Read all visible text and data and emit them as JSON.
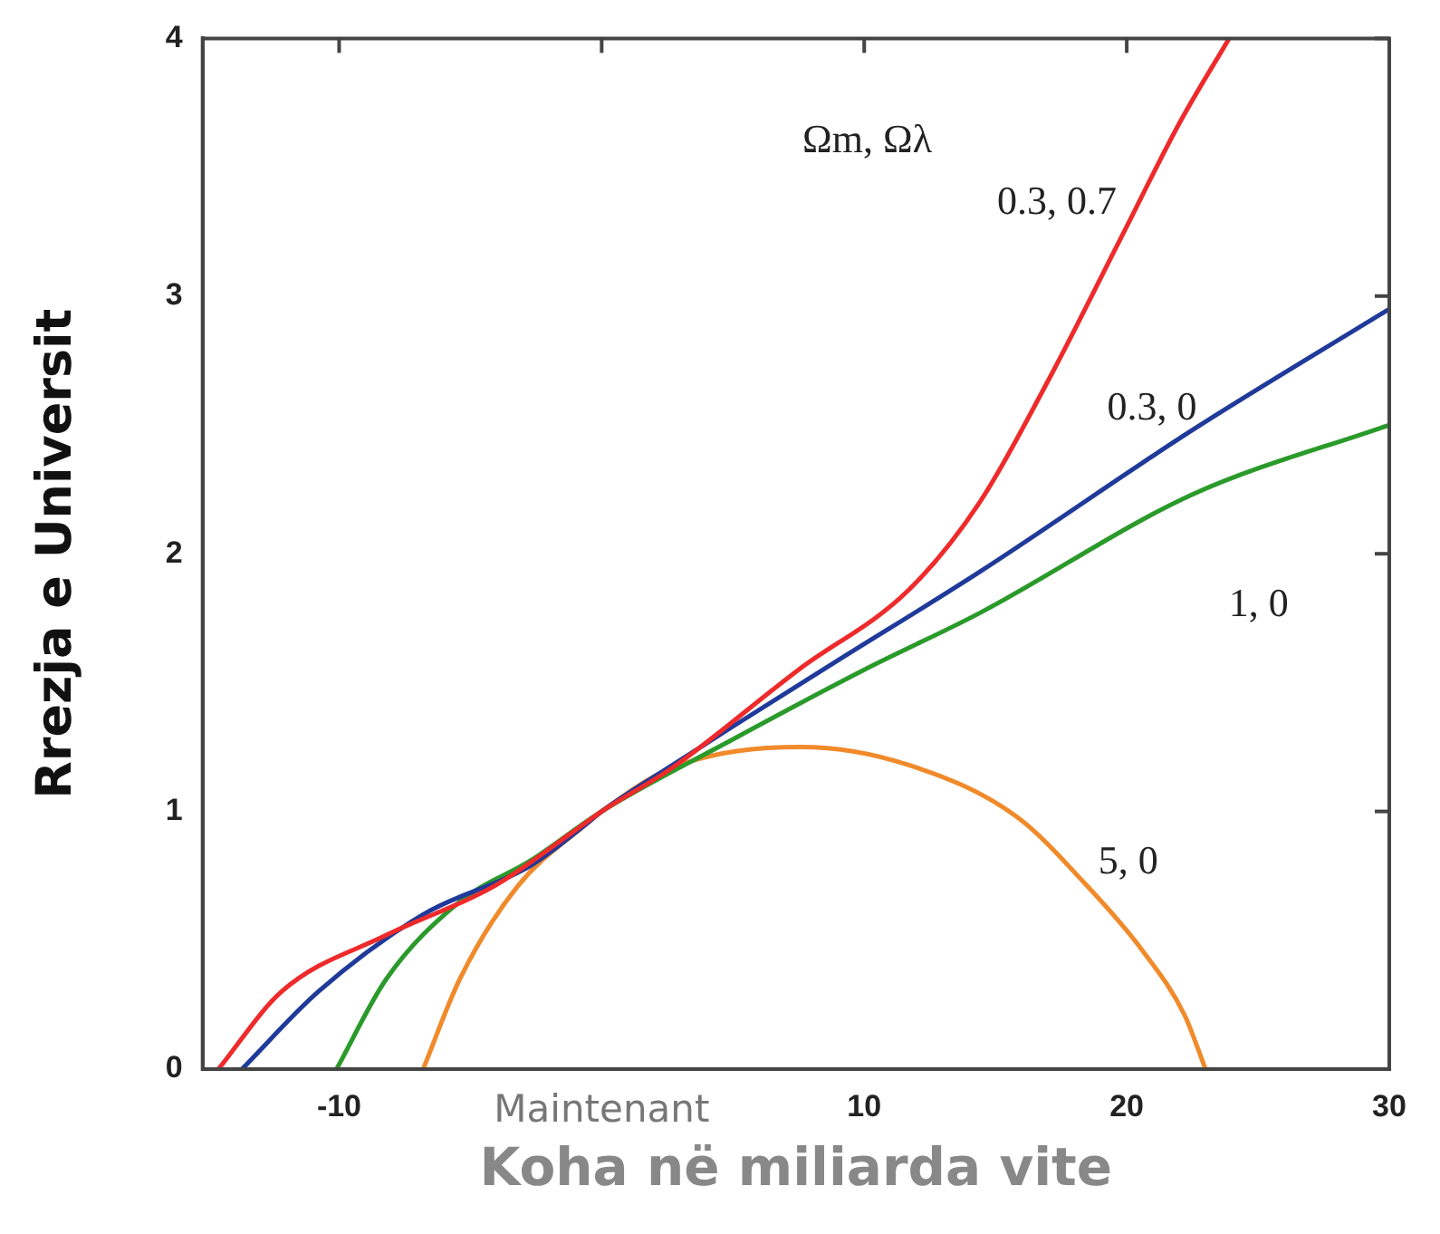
{
  "chart_data": {
    "type": "line",
    "xlabel": "Koha në miliarda vite",
    "ylabel": "Rrezja e Universit",
    "legend_title": "Ωm, Ωλ",
    "legend": false,
    "grid": false,
    "marker": "none",
    "line_style": "solid",
    "xlim": [
      -15.2,
      30
    ],
    "ylim": [
      0,
      4
    ],
    "xticks": [
      -10,
      {
        "value": 0,
        "label": "Maintenant"
      },
      10,
      20,
      30
    ],
    "yticks": [
      0,
      1,
      2,
      3,
      4
    ],
    "series": [
      {
        "name": "0.3, 0.7",
        "color": "#ee2a2a",
        "x": [
          -14.6,
          -12.2,
          -8.2,
          -4.1,
          -1.1,
          0,
          2.7,
          7.5,
          11.7,
          14.4,
          17.1,
          19.8,
          22.0,
          23.9
        ],
        "values": [
          0,
          0.3,
          0.52,
          0.71,
          0.92,
          1,
          1.17,
          1.55,
          1.86,
          2.2,
          2.69,
          3.23,
          3.67,
          4.0
        ]
      },
      {
        "name": "0.3, 0",
        "color": "#1f3a9a",
        "x": [
          -13.7,
          -10.8,
          -6.8,
          -2.7,
          -0.6,
          0,
          2.7,
          5,
          8.9,
          14.4,
          22.5,
          30
        ],
        "values": [
          0,
          0.3,
          0.6,
          0.79,
          0.95,
          1,
          1.18,
          1.33,
          1.58,
          1.93,
          2.48,
          2.95
        ]
      },
      {
        "name": "1, 0",
        "color": "#2a9a2a",
        "x": [
          -10.1,
          -8.2,
          -5.4,
          -2.7,
          0,
          5,
          10,
          14.4,
          22.5,
          30
        ],
        "values": [
          0,
          0.35,
          0.65,
          0.81,
          1,
          1.28,
          1.55,
          1.77,
          2.23,
          2.5
        ]
      },
      {
        "name": "5, 0",
        "color": "#f08a2a",
        "x": [
          -6.8,
          -5.4,
          -3.2,
          -0.6,
          0,
          2.7,
          7.6,
          11.7,
          15.8,
          18.5,
          20.6,
          22.2,
          23.0
        ],
        "values": [
          0,
          0.35,
          0.71,
          0.95,
          1,
          1.17,
          1.25,
          1.18,
          0.98,
          0.71,
          0.46,
          0.21,
          0
        ]
      }
    ]
  }
}
